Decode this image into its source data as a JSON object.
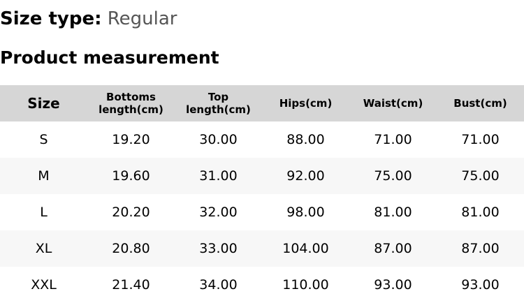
{
  "size_type": {
    "label": "Size type:",
    "value": "Regular"
  },
  "section_title": "Product measurement",
  "table": {
    "headers": [
      "Size",
      "Bottoms length(cm)",
      "Top length(cm)",
      "Hips(cm)",
      "Waist(cm)",
      "Bust(cm)"
    ],
    "rows": [
      [
        "S",
        "19.20",
        "30.00",
        "88.00",
        "71.00",
        "71.00"
      ],
      [
        "M",
        "19.60",
        "31.00",
        "92.00",
        "75.00",
        "75.00"
      ],
      [
        "L",
        "20.20",
        "32.00",
        "98.00",
        "81.00",
        "81.00"
      ],
      [
        "XL",
        "20.80",
        "33.00",
        "104.00",
        "87.00",
        "87.00"
      ],
      [
        "XXL",
        "21.40",
        "34.00",
        "110.00",
        "93.00",
        "93.00"
      ]
    ]
  }
}
